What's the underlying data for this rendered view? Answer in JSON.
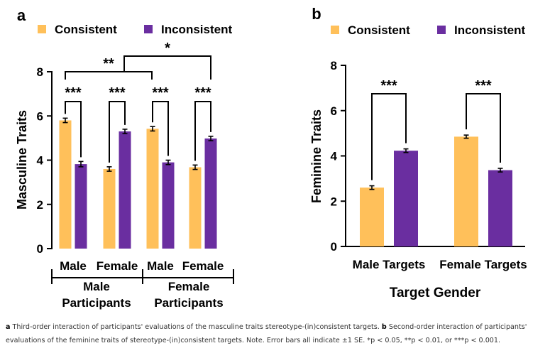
{
  "colors": {
    "consistent": "#FFC05A",
    "inconsistent": "#6A2EA0",
    "axis": "#000000"
  },
  "chart_data": [
    {
      "panel": "a",
      "type": "bar",
      "ylabel": "Masculine Traits",
      "ylim": [
        0,
        8
      ],
      "yticks": [
        0,
        2,
        4,
        6,
        8
      ],
      "legend": [
        "Consistent",
        "Inconsistent"
      ],
      "legend_position": "top",
      "categories": [
        "Male",
        "Female",
        "Male",
        "Female"
      ],
      "groups": [
        "Male\nParticipants",
        "Female\nParticipants"
      ],
      "series": [
        {
          "name": "Consistent",
          "values": [
            5.8,
            3.6,
            5.42,
            3.68
          ],
          "errors": [
            0.1,
            0.1,
            0.1,
            0.1
          ]
        },
        {
          "name": "Inconsistent",
          "values": [
            3.82,
            5.3,
            3.9,
            4.98
          ],
          "errors": [
            0.12,
            0.1,
            0.1,
            0.1
          ]
        }
      ],
      "significance": [
        {
          "between": [
            "Male/Consistent",
            "Male/Inconsistent"
          ],
          "label": "***"
        },
        {
          "between": [
            "Female/Consistent",
            "Female/Inconsistent"
          ],
          "label": "***"
        },
        {
          "between": [
            "Male/Consistent",
            "Male/Inconsistent"
          ],
          "label": "***"
        },
        {
          "between": [
            "Female/Consistent",
            "Female/Inconsistent"
          ],
          "label": "***"
        },
        {
          "between": [
            "Male Participants / Male",
            "Female Participants / Male"
          ],
          "label": "**"
        },
        {
          "between": [
            "Male Participants / Female",
            "Female Participants / Female"
          ],
          "label": "*"
        }
      ]
    },
    {
      "panel": "b",
      "type": "bar",
      "xlabel": "Target Gender",
      "ylabel": "Feminine Traits",
      "ylim": [
        0,
        8
      ],
      "yticks": [
        0,
        2,
        4,
        6,
        8
      ],
      "legend": [
        "Consistent",
        "Inconsistent"
      ],
      "legend_position": "top",
      "categories": [
        "Male Targets",
        "Female Targets"
      ],
      "series": [
        {
          "name": "Consistent",
          "values": [
            2.6,
            4.85
          ],
          "errors": [
            0.08,
            0.07
          ]
        },
        {
          "name": "Inconsistent",
          "values": [
            4.23,
            3.37
          ],
          "errors": [
            0.08,
            0.08
          ]
        }
      ],
      "significance": [
        {
          "between": [
            "Male Targets/Consistent",
            "Male Targets/Inconsistent"
          ],
          "label": "***"
        },
        {
          "between": [
            "Female Targets/Consistent",
            "Female Targets/Inconsistent"
          ],
          "label": "***"
        }
      ]
    }
  ],
  "caption": {
    "a_label": "a",
    "a_text": "Third-order interaction of participants' evaluations of the masculine traits stereotype-(in)consistent targets.",
    "b_label": "b",
    "b_text": "Second-order interaction of participants' evaluations of the feminine traits of stereotype-(in)consistent targets. Note. Error bars all indicate ±1 SE. *p < 0.05, **p < 0.01, or ***p < 0.001."
  }
}
